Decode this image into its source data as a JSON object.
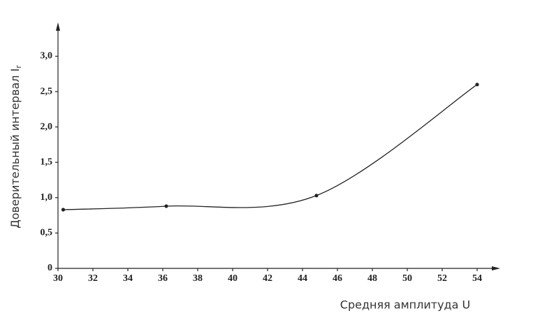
{
  "chart_data": {
    "type": "line",
    "x_label": "Средняя амплитуда U",
    "y_label": "Доверительный интервал I",
    "y_label_subscript": "r",
    "series": [
      {
        "name": "Доверительный интервал",
        "color": "#222222",
        "x": [
          30.3,
          36.2,
          44.8,
          54
        ],
        "values": [
          0.83,
          0.88,
          1.03,
          2.6
        ]
      }
    ],
    "xlim": [
      30,
      55
    ],
    "xticks": [
      30,
      32,
      34,
      36,
      38,
      40,
      42,
      44,
      46,
      48,
      50,
      52,
      54
    ],
    "ylim": [
      0,
      3.4
    ],
    "yticks": [
      0,
      {
        "value": 0.5,
        "label": "0,5"
      },
      {
        "value": 1,
        "label": "1,0"
      },
      {
        "value": 1.5,
        "label": "1,5"
      },
      {
        "value": 2,
        "label": "2,0"
      },
      {
        "value": 2.5,
        "label": "2,5"
      },
      {
        "value": 3,
        "label": "3,0"
      }
    ],
    "grid": false,
    "smooth": true
  }
}
